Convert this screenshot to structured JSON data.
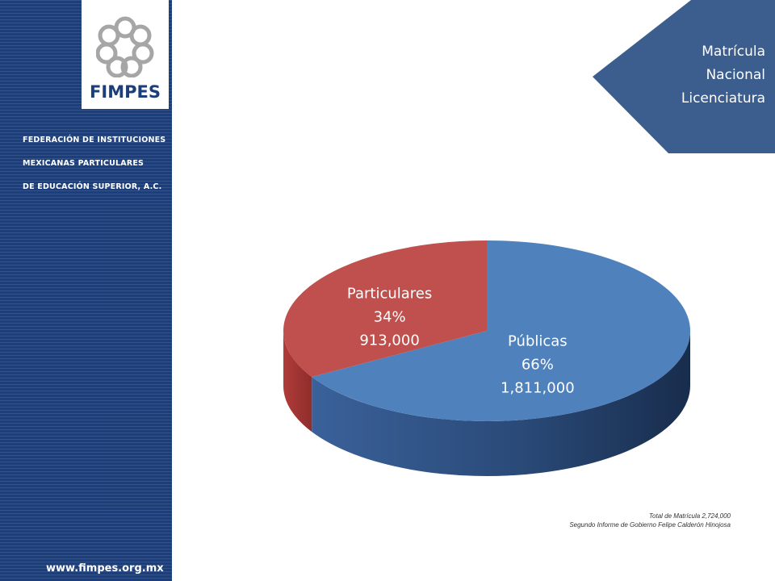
{
  "sidebar": {
    "logo_text": "FIMPES",
    "federation_lines": [
      "FEDERACIÓN DE INSTITUCIONES",
      "MEXICANAS PARTICULARES",
      "DE EDUCACIÓN SUPERIOR, A.C."
    ],
    "website": "www.fimpes.org.mx"
  },
  "banner": {
    "lines": [
      "Matrícula",
      "Nacional",
      "Licenciatura"
    ],
    "color": "#3b5e8e"
  },
  "chart_data": {
    "type": "pie",
    "style": "3d",
    "slices": [
      {
        "name": "Públicas",
        "percent": "66%",
        "value": 1811000,
        "value_label": "1,811,000",
        "color": "#4f81bd"
      },
      {
        "name": "Particulares",
        "percent": "34%",
        "value": 913000,
        "value_label": "913,000",
        "color": "#c0504d"
      }
    ],
    "data_labels": "name, percent, value"
  },
  "footnote": {
    "line1": "Total de Matrícula  2,724,000",
    "line2": "Segundo  Informe de Gobierno Felipe Calderón Hinojosa"
  }
}
